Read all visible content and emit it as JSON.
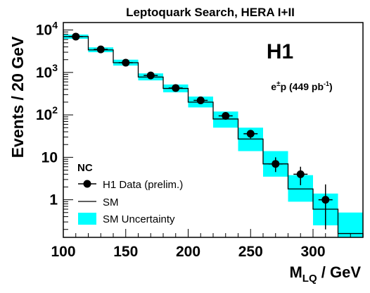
{
  "chart_data": {
    "type": "line",
    "title": "Leptoquark Search, HERA I+II",
    "experiment_label": "H1",
    "process_label": {
      "prefix": "e",
      "pm": "±",
      "mid": "p (449 pb",
      "exp": "-1",
      "suffix": ")"
    },
    "xlabel": {
      "main": "M",
      "sub": "LQ",
      "unit": " / GeV"
    },
    "ylabel": "Events / 20 GeV",
    "xlim": [
      100,
      340
    ],
    "ylim": [
      0.13,
      15000
    ],
    "y_scale": "log",
    "x_ticks": [
      100,
      150,
      200,
      250,
      300
    ],
    "y_ticks": [
      {
        "value": 10000,
        "base": "10",
        "exp": "4"
      },
      {
        "value": 1000,
        "base": "10",
        "exp": "3"
      },
      {
        "value": 100,
        "base": "10",
        "exp": "2"
      },
      {
        "value": 10,
        "base": "10",
        "exp": ""
      },
      {
        "value": 1,
        "base": "1",
        "exp": ""
      }
    ],
    "legend": {
      "placement": "bottom-left",
      "header": "NC",
      "entries": [
        "H1 Data (prelim.)",
        "SM",
        "SM Uncertainty"
      ]
    },
    "bins": [
      {
        "x0": 100,
        "x1": 120,
        "sm": 7000,
        "lo": 6200,
        "hi": 7800
      },
      {
        "x0": 120,
        "x1": 140,
        "sm": 3400,
        "lo": 3000,
        "hi": 3900
      },
      {
        "x0": 140,
        "x1": 160,
        "sm": 1700,
        "lo": 1450,
        "hi": 2000
      },
      {
        "x0": 160,
        "x1": 180,
        "sm": 780,
        "lo": 650,
        "hi": 950
      },
      {
        "x0": 180,
        "x1": 200,
        "sm": 420,
        "lo": 340,
        "hi": 520
      },
      {
        "x0": 200,
        "x1": 220,
        "sm": 200,
        "lo": 150,
        "hi": 270
      },
      {
        "x0": 220,
        "x1": 240,
        "sm": 80,
        "lo": 50,
        "hi": 120
      },
      {
        "x0": 240,
        "x1": 260,
        "sm": 27,
        "lo": 14,
        "hi": 50
      },
      {
        "x0": 260,
        "x1": 280,
        "sm": 7,
        "lo": 3.5,
        "hi": 14
      },
      {
        "x0": 280,
        "x1": 300,
        "sm": 1.8,
        "lo": 0.9,
        "hi": 3.8
      },
      {
        "x0": 300,
        "x1": 320,
        "sm": 0.6,
        "lo": 0.25,
        "hi": 1.4
      },
      {
        "x0": 320,
        "x1": 340,
        "sm": 0.16,
        "lo": 0.13,
        "hi": 0.5
      }
    ],
    "series": [
      {
        "name": "H1 Data (prelim.)",
        "x": [
          110,
          130,
          150,
          170,
          190,
          210,
          230,
          250,
          270,
          290,
          310
        ],
        "y": [
          7000,
          3500,
          1700,
          850,
          430,
          220,
          95,
          36,
          7,
          4,
          1
        ],
        "err_lo": [
          6700,
          3350,
          1600,
          790,
          390,
          196,
          80,
          28,
          4.5,
          2.2,
          0.2
        ],
        "err_hi": [
          7300,
          3650,
          1800,
          910,
          470,
          245,
          110,
          44,
          10,
          6,
          2.3
        ]
      }
    ],
    "colors": {
      "band": "#00ffff",
      "line": "#000000",
      "marker": "#000000"
    }
  }
}
